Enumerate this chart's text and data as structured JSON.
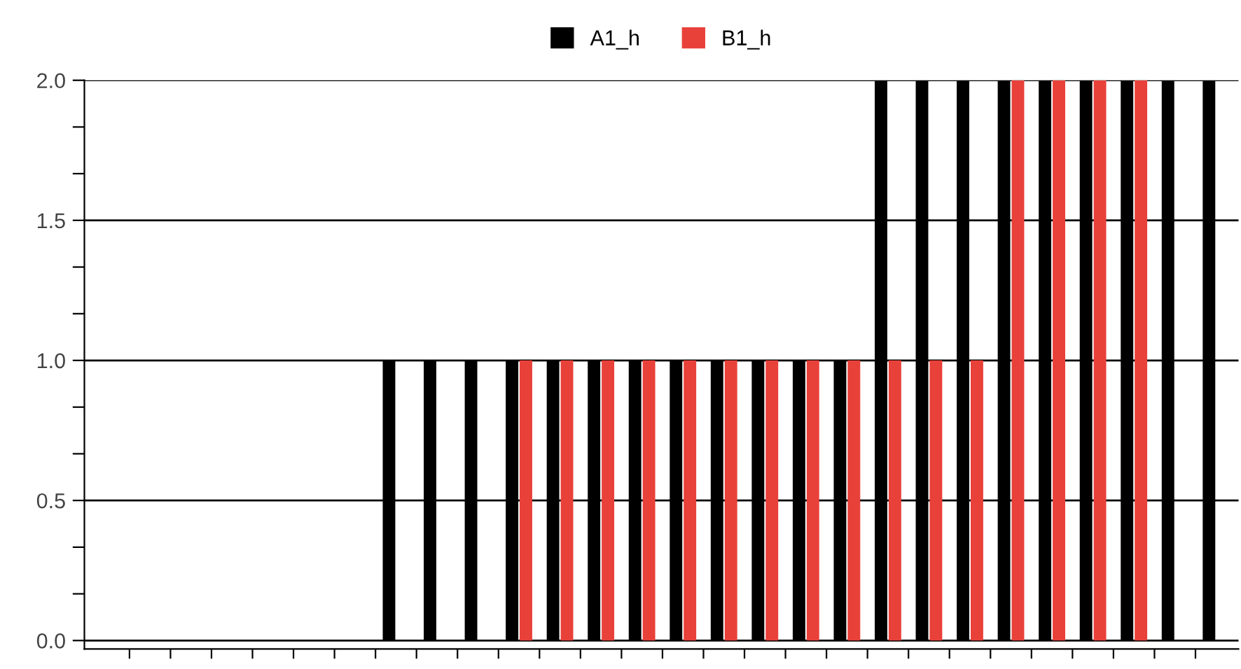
{
  "chart_data": {
    "type": "bar",
    "categories": [
      null,
      null,
      null,
      null,
      null,
      null,
      null,
      null,
      null,
      null,
      null,
      null,
      null,
      null,
      null,
      null,
      null,
      null,
      null,
      null,
      null,
      null,
      null,
      null,
      null,
      null,
      null,
      null
    ],
    "series": [
      {
        "name": "A1_h",
        "color": "#000000",
        "values": [
          0,
          0,
          0,
          0,
          0,
          0,
          0,
          1,
          1,
          1,
          1,
          1,
          1,
          1,
          1,
          1,
          1,
          1,
          1,
          2,
          2,
          2,
          2,
          2,
          2,
          2,
          2,
          2
        ]
      },
      {
        "name": "B1_h",
        "color": "#e8413a",
        "values": [
          0,
          0,
          0,
          0,
          0,
          0,
          0,
          0,
          0,
          0,
          1,
          1,
          1,
          1,
          1,
          1,
          1,
          1,
          1,
          1,
          1,
          1,
          2,
          2,
          2,
          2,
          0,
          0
        ]
      }
    ],
    "ylim": [
      -0.03,
      2.0
    ],
    "yticks": [
      {
        "value": 0,
        "label": "0.0"
      },
      {
        "value": 0.1667,
        "label": null
      },
      {
        "value": 0.3333,
        "label": null
      },
      {
        "value": 0.5,
        "label": "0.5"
      },
      {
        "value": 0.6667,
        "label": null
      },
      {
        "value": 0.8333,
        "label": null
      },
      {
        "value": 1.0,
        "label": "1.0"
      },
      {
        "value": 1.1667,
        "label": null
      },
      {
        "value": 1.3333,
        "label": null
      },
      {
        "value": 1.5,
        "label": "1.5"
      },
      {
        "value": 1.6667,
        "label": null
      },
      {
        "value": 1.8333,
        "label": null
      },
      {
        "value": 2.0,
        "label": "2.0"
      }
    ],
    "grid": "y",
    "legend": "top"
  }
}
